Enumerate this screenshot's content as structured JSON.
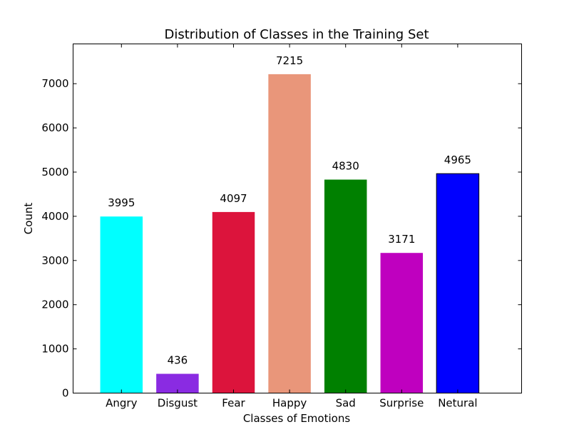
{
  "chart_data": {
    "type": "bar",
    "title": "Distribution of Classes in the Training Set",
    "xlabel": "Classes of Emotions",
    "ylabel": "Count",
    "categories": [
      "Angry",
      "Disgust",
      "Fear",
      "Happy",
      "Sad",
      "Surprise",
      "Netural"
    ],
    "values": [
      3995,
      436,
      4097,
      7215,
      4830,
      3171,
      4965
    ],
    "data_labels": [
      "3995",
      "436",
      "4097",
      "7215",
      "4830",
      "3171",
      "4965"
    ],
    "colors": [
      "#00ffff",
      "#8a2be2",
      "#dc143c",
      "#e9967a",
      "#008000",
      "#bf00bf",
      "#0000ff"
    ],
    "ylim": [
      0,
      7900
    ],
    "yticks": [
      0,
      1000,
      2000,
      3000,
      4000,
      5000,
      6000,
      7000
    ],
    "ytick_labels": [
      "0",
      "1000",
      "2000",
      "3000",
      "4000",
      "5000",
      "6000",
      "7000"
    ],
    "grid": false,
    "legend": "none"
  }
}
